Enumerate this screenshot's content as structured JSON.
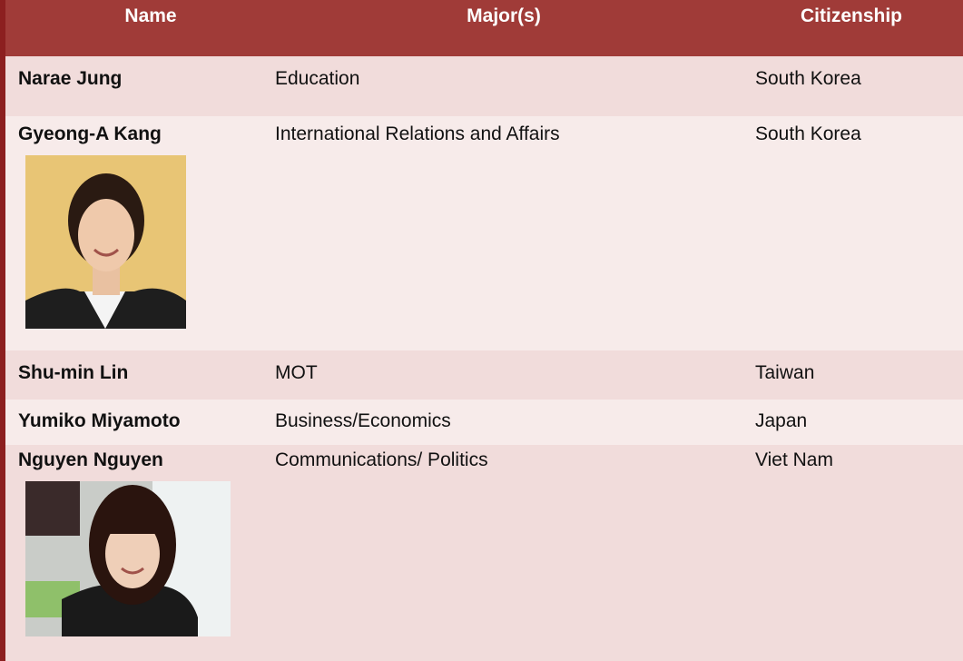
{
  "table": {
    "header": [
      "Name",
      "Major(s)",
      "Citizenship"
    ],
    "rows": [
      [
        "Narae Jung",
        "Education",
        "South Korea"
      ],
      [
        "Gyeong-A Kang",
        "International Relations and Affairs",
        "South Korea"
      ],
      [
        "Shu-min Lin",
        "MOT",
        "Taiwan"
      ],
      [
        "Yumiko Miyamoto",
        "Business/Economics",
        "Japan"
      ],
      [
        "Nguyen Nguyen",
        "Communications/ Politics",
        "Viet Nam"
      ]
    ]
  }
}
